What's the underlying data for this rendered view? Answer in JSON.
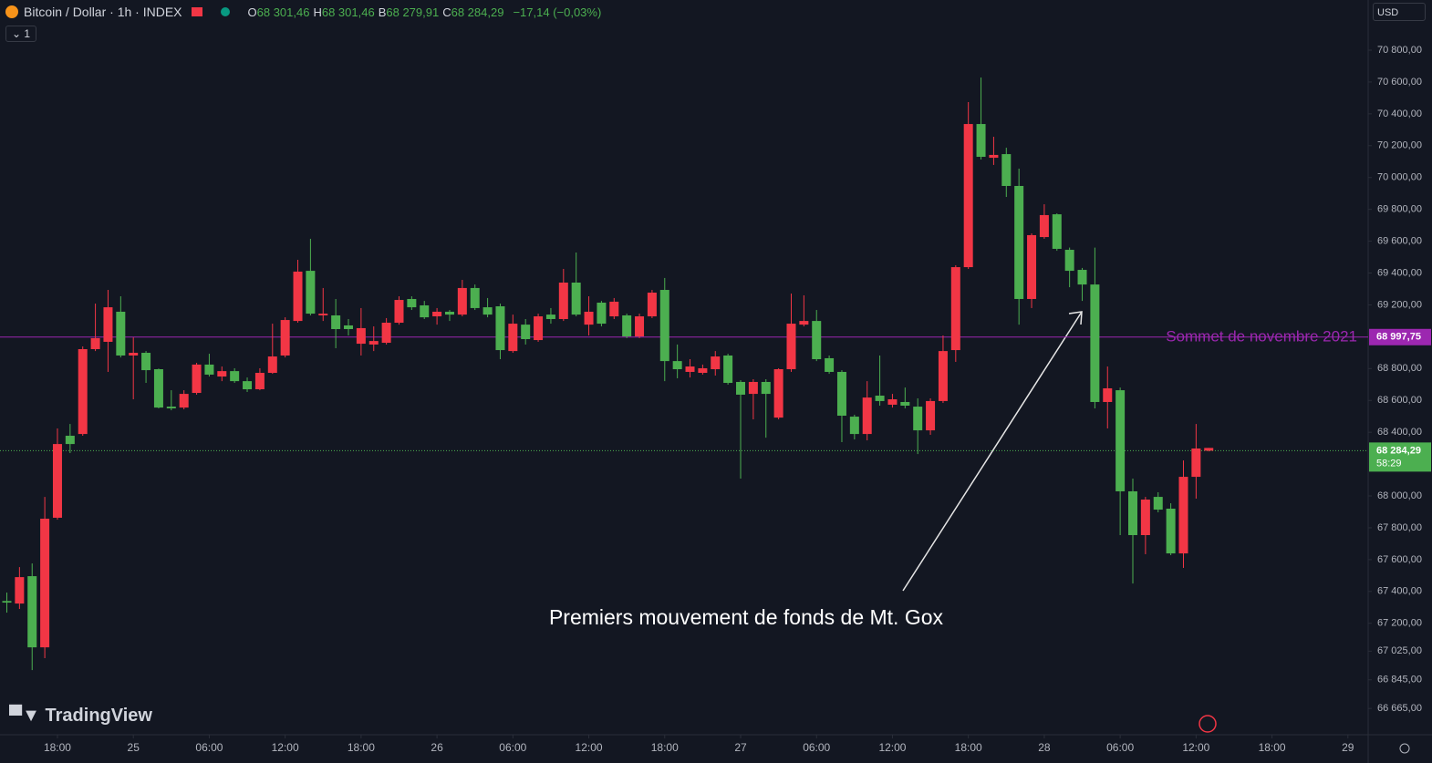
{
  "header": {
    "symbol": "Bitcoin / Dollar · 1h · INDEX",
    "ohlc": [
      {
        "key": "O",
        "value": "68 301,46"
      },
      {
        "key": "H",
        "value": "68 301,46"
      },
      {
        "key": "B",
        "value": "68 279,91"
      },
      {
        "key": "C",
        "value": "68 284,29"
      }
    ],
    "change": "−17,14 (−0,03%)",
    "collapse": "1",
    "currency": "USD",
    "logo": "TradingView"
  },
  "chart_data": {
    "type": "candlestick",
    "up_color": "#4caf50",
    "down_color": "#f23645",
    "open": [
      67330,
      67490,
      67049,
      67857,
      68326,
      68326,
      68922,
      68991,
      69185,
      68882,
      68899,
      68790,
      68555,
      68550,
      68641,
      68825,
      68762,
      68784,
      68721,
      68670,
      68773,
      68876,
      69105,
      69409,
      69145,
      69145,
      69048,
      69048,
      69054,
      68973,
      69088,
      69231,
      69185,
      69122,
      69157,
      69139,
      69306,
      69180,
      69139,
      68916,
      69082,
      68985,
      69128,
      69111,
      69340,
      69139,
      69157,
      69082,
      69220,
      69002,
      69128,
      69277,
      68847,
      68796,
      68813,
      68802,
      68876,
      68710,
      68636,
      68716,
      68641,
      68796,
      69082,
      69099,
      68859,
      68779,
      68504,
      68389,
      68618,
      68596,
      68607,
      68567,
      68412,
      68596,
      68910,
      69437,
      70336,
      70130,
      70142,
      69947,
      69237,
      69638,
      69764,
      69552,
      69414,
      69328,
      68590,
      68676,
      68029,
      67754,
      67977,
      67914,
      67639,
      68120,
      68298,
      68301.46
    ],
    "high": [
      67393,
      67553,
      67576,
      67994,
      68424,
      68452,
      68939,
      69208,
      69294,
      69254,
      68996,
      68910,
      68800,
      68664,
      68664,
      68836,
      68893,
      68813,
      68802,
      68744,
      68802,
      69082,
      69122,
      69483,
      69615,
      69306,
      69237,
      69111,
      69180,
      69065,
      69117,
      69254,
      69254,
      69225,
      69180,
      69168,
      69357,
      69328,
      69243,
      69208,
      69139,
      69111,
      69145,
      69180,
      69426,
      69529,
      69254,
      69225,
      69243,
      69145,
      69145,
      69294,
      69369,
      68951,
      68859,
      68825,
      68910,
      68893,
      68727,
      68733,
      68733,
      68802,
      69271,
      69260,
      69168,
      68882,
      68790,
      68510,
      68721,
      68882,
      68641,
      68681,
      68613,
      68613,
      69008,
      69449,
      70474,
      70628,
      70256,
      70187,
      70056,
      69649,
      69832,
      69775,
      69560,
      69432,
      69560,
      68813,
      68681,
      68109,
      67994,
      68023,
      67954,
      68223,
      68452,
      68301.46
    ],
    "low": [
      67267,
      67290,
      66906,
      66981,
      67851,
      68269,
      68378,
      68910,
      68779,
      68870,
      68607,
      68710,
      68550,
      68538,
      68544,
      68636,
      68750,
      68721,
      68710,
      68653,
      68664,
      68767,
      68870,
      69088,
      69134,
      69099,
      68928,
      69008,
      68882,
      68910,
      68951,
      69076,
      69168,
      69111,
      69076,
      69099,
      69128,
      69168,
      69122,
      68859,
      68899,
      68951,
      68968,
      69082,
      69099,
      69128,
      69008,
      69065,
      69111,
      68991,
      68991,
      69117,
      68721,
      68739,
      68744,
      68762,
      68756,
      68699,
      68109,
      68481,
      68366,
      68481,
      68779,
      69065,
      68847,
      68767,
      68338,
      68355,
      68349,
      68567,
      68555,
      68550,
      68263,
      68384,
      68584,
      68842,
      69426,
      70113,
      70079,
      69878,
      69076,
      69180,
      69615,
      69540,
      69311,
      69225,
      68550,
      68424,
      67754,
      67450,
      67634,
      67897,
      67628,
      67548,
      67983,
      68279.91
    ],
    "close": [
      67340,
      67324,
      67496,
      67049,
      67863,
      68378,
      68389,
      68922,
      68968,
      69157,
      68882,
      68899,
      68796,
      68561,
      68555,
      68647,
      68825,
      68750,
      68784,
      68721,
      68670,
      68773,
      68882,
      69099,
      69414,
      69134,
      69134,
      69071,
      68956,
      68951,
      68962,
      69088,
      69237,
      69197,
      69128,
      69157,
      69139,
      69306,
      69185,
      69191,
      68910,
      69076,
      68979,
      69139,
      69111,
      69340,
      69076,
      69214,
      69128,
      69134,
      69002,
      69128,
      69294,
      68847,
      68779,
      68773,
      68796,
      68882,
      68716,
      68641,
      68716,
      68492,
      68796,
      69076,
      69099,
      68865,
      68779,
      68498,
      68389,
      68630,
      68573,
      68590,
      68561,
      68412,
      68596,
      68916,
      69437,
      70336,
      70124,
      70147,
      69947,
      69237,
      69626,
      69769,
      69546,
      69420,
      69328,
      68590,
      68664,
      68029,
      67754,
      67994,
      67920,
      67639,
      68120,
      68284.29
    ],
    "ylim": [
      66500,
      71115
    ],
    "yticks": [
      {
        "value": 70800,
        "label": "70 800,00"
      },
      {
        "value": 70600,
        "label": "70 600,00"
      },
      {
        "value": 70400,
        "label": "70 400,00"
      },
      {
        "value": 70200,
        "label": "70 200,00"
      },
      {
        "value": 70000,
        "label": "70 000,00"
      },
      {
        "value": 69800,
        "label": "69 800,00"
      },
      {
        "value": 69600,
        "label": "69 600,00"
      },
      {
        "value": 69400,
        "label": "69 400,00"
      },
      {
        "value": 69200,
        "label": "69 200,00"
      },
      {
        "value": 68800,
        "label": "68 800,00"
      },
      {
        "value": 68600,
        "label": "68 600,00"
      },
      {
        "value": 68400,
        "label": "68 400,00"
      },
      {
        "value": 68000,
        "label": "68 000,00"
      },
      {
        "value": 67800,
        "label": "67 800,00"
      },
      {
        "value": 67600,
        "label": "67 600,00"
      },
      {
        "value": 67400,
        "label": "67 400,00"
      },
      {
        "value": 67200,
        "label": "67 200,00"
      },
      {
        "value": 67025,
        "label": "67 025,00"
      },
      {
        "value": 66845,
        "label": "66 845,00"
      },
      {
        "value": 66665,
        "label": "66 665,00"
      }
    ],
    "xlim": [
      -0.54,
      107.6
    ],
    "xticks": [
      {
        "value": 4,
        "label": "18:00"
      },
      {
        "value": 10,
        "label": "25"
      },
      {
        "value": 16,
        "label": "06:00"
      },
      {
        "value": 22,
        "label": "12:00"
      },
      {
        "value": 28,
        "label": "18:00"
      },
      {
        "value": 34,
        "label": "26"
      },
      {
        "value": 40,
        "label": "06:00"
      },
      {
        "value": 46,
        "label": "12:00"
      },
      {
        "value": 52,
        "label": "18:00"
      },
      {
        "value": 58,
        "label": "27"
      },
      {
        "value": 64,
        "label": "06:00"
      },
      {
        "value": 70,
        "label": "12:00"
      },
      {
        "value": 76,
        "label": "18:00"
      },
      {
        "value": 82,
        "label": "28"
      },
      {
        "value": 88,
        "label": "06:00"
      },
      {
        "value": 94,
        "label": "12:00"
      },
      {
        "value": 100,
        "label": "18:00"
      },
      {
        "value": 106,
        "label": "29"
      }
    ],
    "hline": {
      "value": 68997.75,
      "label": "68 997,75",
      "text": "Sommet de novembre 2021",
      "color": "#9c27b0"
    },
    "last_price": {
      "value": 68284.29,
      "label": "68 284,29",
      "countdown": "58:29",
      "color": "#4caf50"
    },
    "annotation": "Premiers mouvement de fonds de Mt. Gox"
  }
}
